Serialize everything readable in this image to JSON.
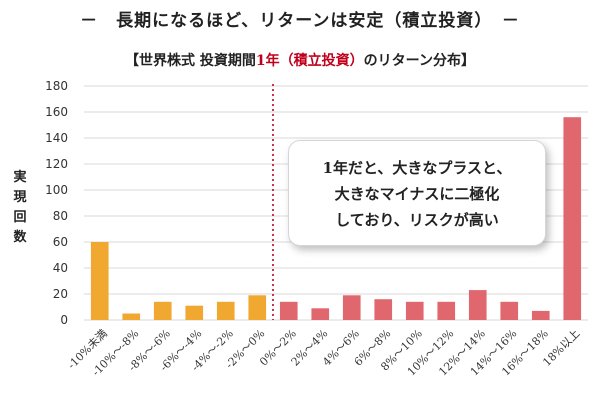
{
  "header": {
    "main_title": "－　長期になるほど、リターンは安定（積立投資）　－",
    "chart_title_prefix": "【世界株式 投資期間",
    "chart_title_highlight": "1年",
    "chart_title_paren": "（積立投資）",
    "chart_title_suffix": "のリターン分布】"
  },
  "callout": {
    "lines": [
      "1年だと、大きなプラスと、",
      "大きなマイナスに二極化",
      "しており、リスクが高い"
    ]
  },
  "chart_data": {
    "type": "bar",
    "ylabel": [
      "実",
      "現",
      "回",
      "数"
    ],
    "ylim": [
      0,
      180
    ],
    "yticks": [
      0,
      20,
      40,
      60,
      80,
      100,
      120,
      140,
      160,
      180
    ],
    "grid": true,
    "categories": [
      "-10%未満",
      "-10%～-8%",
      "-8%～-6%",
      "-6%～-4%",
      "-4%～-2%",
      "-2%～0%",
      "0%～2%",
      "2%～4%",
      "4%～6%",
      "6%～8%",
      "8%～10%",
      "10%～12%",
      "12%～14%",
      "14%～16%",
      "16%～18%",
      "18%以上"
    ],
    "values": [
      60,
      5,
      14,
      11,
      14,
      19,
      14,
      9,
      19,
      16,
      14,
      14,
      23,
      14,
      7,
      156
    ],
    "colors": [
      "#f0a830",
      "#f0a830",
      "#f0a830",
      "#f0a830",
      "#f0a830",
      "#f0a830",
      "#e0676e",
      "#e0676e",
      "#e0676e",
      "#e0676e",
      "#e0676e",
      "#e0676e",
      "#e0676e",
      "#e0676e",
      "#e0676e",
      "#e0676e"
    ],
    "divider_after_index": 5,
    "divider_color": "#c0001d",
    "grid_color": "#d9d9d9"
  }
}
